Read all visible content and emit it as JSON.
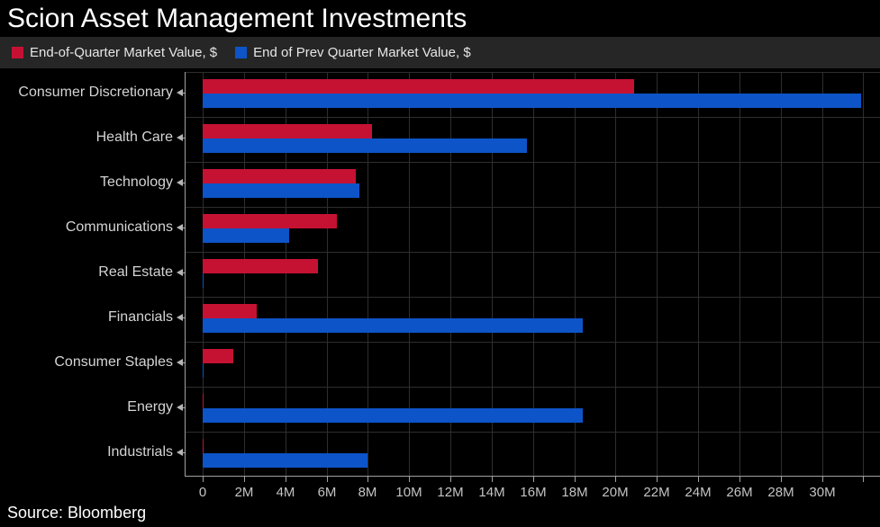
{
  "chart_data": {
    "type": "bar",
    "orientation": "horizontal",
    "title": "Scion Asset Management Investments",
    "source": "Source: Bloomberg",
    "legend_position": "top",
    "grid": true,
    "categories": [
      "Consumer Discretionary",
      "Health Care",
      "Technology",
      "Communications",
      "Real Estate",
      "Financials",
      "Consumer Staples",
      "Energy",
      "Industrials"
    ],
    "series": [
      {
        "name": "End-of-Quarter Market Value, $",
        "color": "#c51233",
        "values_millions": [
          20.9,
          8.2,
          7.4,
          6.5,
          5.6,
          2.6,
          1.5,
          0.05,
          0.05
        ]
      },
      {
        "name": "End of Prev Quarter Market Value, $",
        "color": "#0d54c8",
        "values_millions": [
          31.9,
          15.7,
          7.6,
          4.2,
          0.05,
          18.4,
          0.05,
          18.4,
          8.0
        ]
      }
    ],
    "x_tick_labels": [
      "0",
      "2M",
      "4M",
      "6M",
      "8M",
      "10M",
      "12M",
      "14M",
      "16M",
      "18M",
      "20M",
      "22M",
      "24M",
      "26M",
      "28M",
      "30M"
    ],
    "xlim_millions": [
      0,
      32.8
    ]
  },
  "colors": {
    "background": "#000000",
    "legend_bar": "#262626",
    "gridline": "#2e2e2e",
    "axis": "#a0a0a0",
    "category_label": "#d4d4d4",
    "tick_label": "#c4c4c4",
    "title_text": "#ffffff"
  }
}
